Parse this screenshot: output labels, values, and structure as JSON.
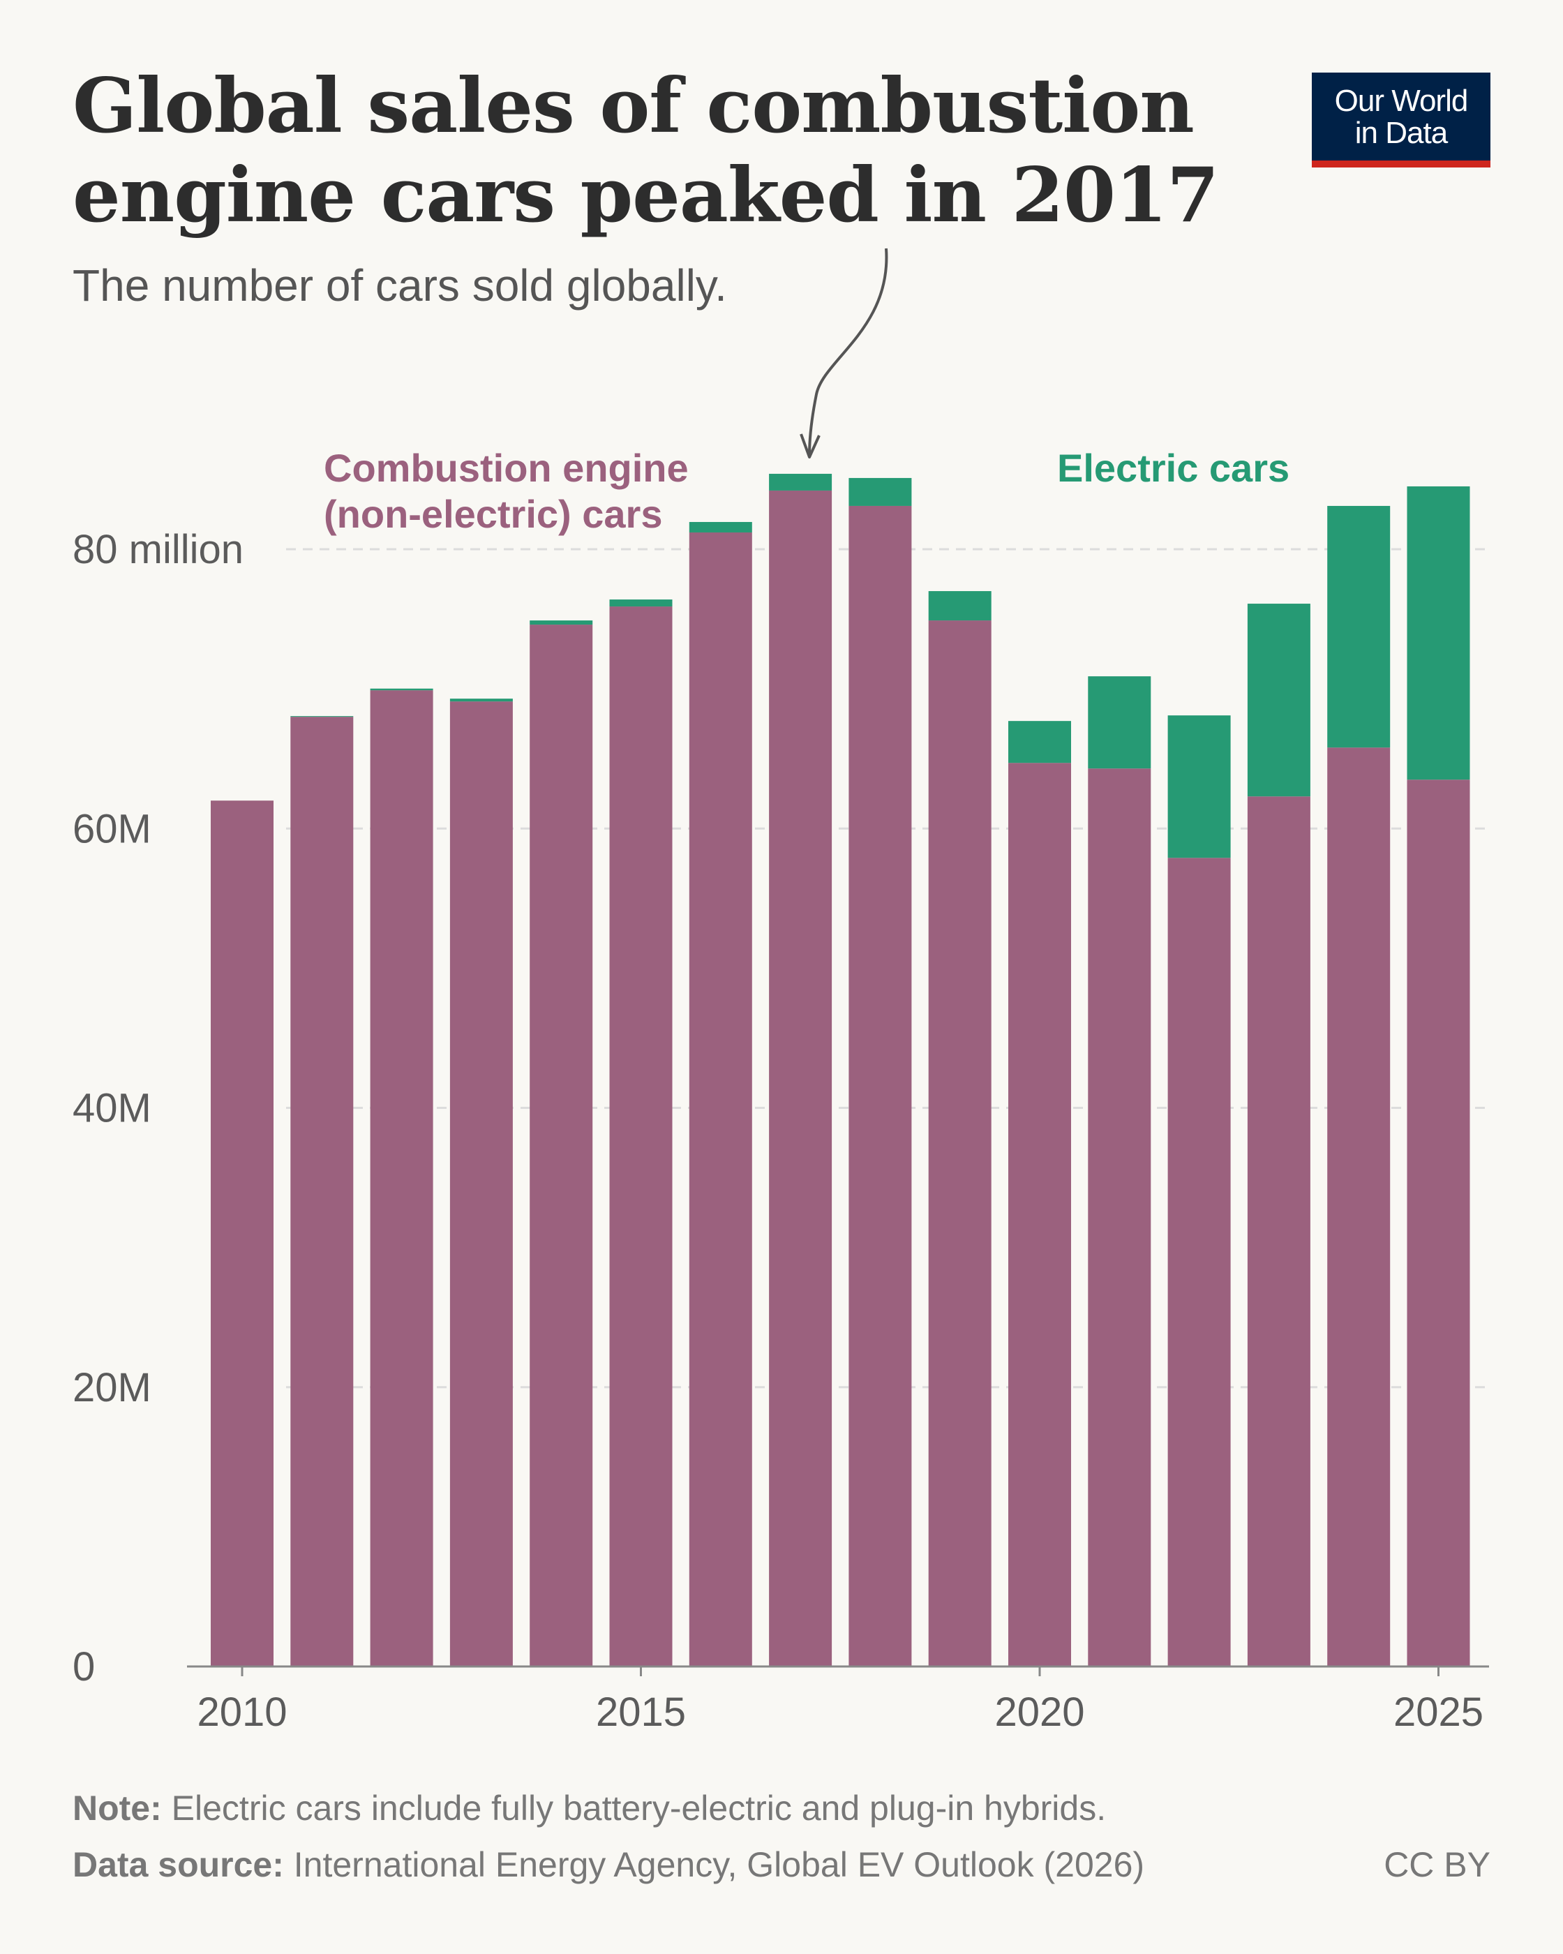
{
  "header": {
    "title_line1": "Global sales of combustion",
    "title_line2": "engine cars peaked in 2017",
    "subtitle": "The number of cars sold globally."
  },
  "logo": {
    "line1": "Our World",
    "line2": "in Data",
    "bg_color": "#002147",
    "accent_color": "#ce261e"
  },
  "footer": {
    "note_label": "Note:",
    "note_text": " Electric cars include fully battery-electric and plug-in hybrids.",
    "source_label": "Data source:",
    "source_text": " International Energy Agency, Global EV Outlook (2026)",
    "license": "CC BY"
  },
  "chart_data": {
    "type": "bar",
    "stacked": true,
    "categories": [
      2010,
      2011,
      2012,
      2013,
      2014,
      2015,
      2016,
      2017,
      2018,
      2019,
      2020,
      2021,
      2022,
      2023,
      2024,
      2025
    ],
    "series": [
      {
        "name": "Combustion engine (non-electric) cars",
        "label_lines": [
          "Combustion engine",
          "(non-electric) cars"
        ],
        "color": "#9b617e",
        "values": [
          62.0,
          68.0,
          69.9,
          69.1,
          74.6,
          75.9,
          81.2,
          84.2,
          83.1,
          74.9,
          64.7,
          64.3,
          57.9,
          62.3,
          65.8,
          63.5
        ]
      },
      {
        "name": "Electric cars",
        "label_lines": [
          "Electric cars"
        ],
        "color": "#269a74",
        "values": [
          0.0,
          0.05,
          0.12,
          0.2,
          0.3,
          0.5,
          0.75,
          1.2,
          2.0,
          2.1,
          3.0,
          6.6,
          10.2,
          13.8,
          17.3,
          21.0
        ]
      }
    ],
    "ylim": [
      0,
      80
    ],
    "yticks": [
      0,
      20,
      40,
      60,
      80
    ],
    "ytick_labels": [
      "0",
      "20M",
      "40M",
      "60M",
      "80 million"
    ],
    "xticks": [
      2010,
      2015,
      2020,
      2025
    ],
    "xtick_labels": [
      "2010",
      "2015",
      "2020",
      "2025"
    ],
    "grid": "horizontal dashed",
    "annotation": {
      "points_to": 2017
    },
    "axis_color": "#888888",
    "grid_color": "#dcdcdc",
    "tick_label_color": "#5b5b5b"
  }
}
